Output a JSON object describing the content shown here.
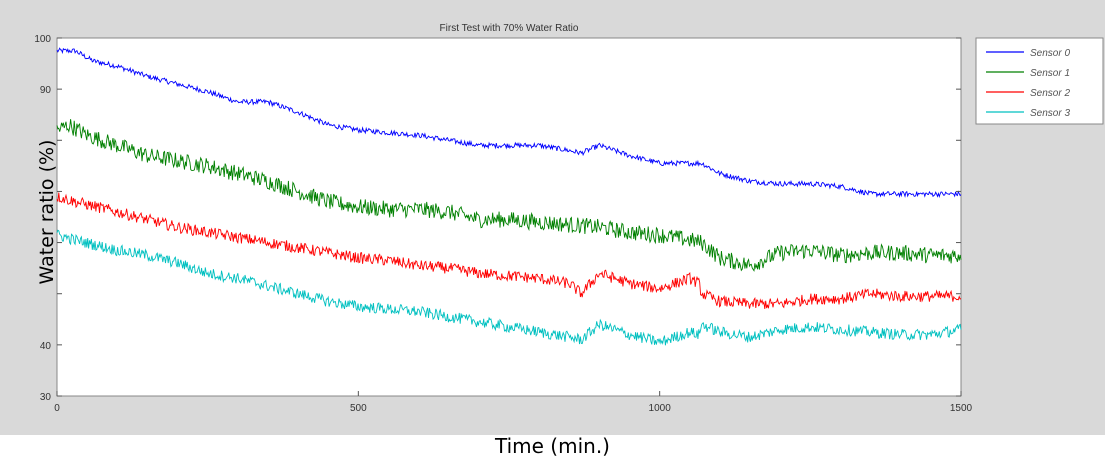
{
  "chart_data": {
    "type": "line",
    "title": "First Test with 70% Water Ratio",
    "xlabel": "Time (min.)",
    "ylabel": "Water ratio (%)",
    "xlim": [
      0,
      1500
    ],
    "ylim": [
      30,
      100
    ],
    "xticks": [
      0,
      500,
      1000,
      1500
    ],
    "yticks": [
      30,
      40,
      50,
      60,
      70,
      80,
      90,
      100
    ],
    "ytick_labels": [
      "30",
      "40",
      "",
      "",
      "",
      "",
      "90",
      "100"
    ],
    "grid": false,
    "legend_position": "right, top",
    "series": [
      {
        "name": "Sensor 0",
        "color": "#0000ff",
        "noise": 0.5,
        "x": [
          0,
          30,
          60,
          100,
          150,
          200,
          250,
          300,
          350,
          400,
          450,
          500,
          550,
          600,
          650,
          700,
          750,
          800,
          850,
          870,
          900,
          950,
          1000,
          1050,
          1070,
          1100,
          1150,
          1200,
          1250,
          1300,
          1350,
          1400,
          1450,
          1500
        ],
        "y": [
          97.5,
          97.5,
          95.5,
          94.5,
          92.5,
          91,
          89.5,
          87.5,
          87.5,
          85.5,
          83,
          82,
          81.5,
          81,
          80,
          79,
          79,
          79,
          78,
          77.5,
          79,
          77,
          75.5,
          75.5,
          75.5,
          73.5,
          72,
          71.5,
          71.5,
          71,
          69.5,
          69.5,
          69.5,
          69.5
        ]
      },
      {
        "name": "Sensor 1",
        "color": "#008000",
        "noise": 1.6,
        "x": [
          0,
          20,
          50,
          100,
          150,
          200,
          250,
          300,
          350,
          400,
          450,
          500,
          550,
          600,
          650,
          700,
          750,
          800,
          850,
          900,
          950,
          1000,
          1050,
          1070,
          1100,
          1150,
          1200,
          1250,
          1300,
          1350,
          1400,
          1450,
          1500
        ],
        "y": [
          82,
          83,
          81,
          79,
          77,
          76,
          75,
          73.5,
          72,
          70,
          68,
          67,
          66.5,
          66.5,
          66,
          64.5,
          64.5,
          64,
          63.5,
          63,
          62,
          61.5,
          60.5,
          60,
          57,
          55.5,
          58,
          58.5,
          57.5,
          58,
          58,
          57.5,
          57.5
        ]
      },
      {
        "name": "Sensor 2",
        "color": "#ff0000",
        "noise": 1.1,
        "x": [
          0,
          30,
          100,
          150,
          200,
          250,
          300,
          350,
          400,
          450,
          500,
          550,
          600,
          650,
          700,
          750,
          800,
          850,
          870,
          900,
          950,
          1000,
          1050,
          1065,
          1070,
          1100,
          1150,
          1200,
          1250,
          1300,
          1350,
          1400,
          1450,
          1500
        ],
        "y": [
          69,
          68,
          66,
          64.5,
          63,
          62,
          61,
          60,
          59,
          58,
          57,
          56.5,
          55.5,
          55,
          54,
          53.5,
          53,
          52,
          50,
          54,
          52,
          51,
          53,
          52,
          50,
          48.5,
          48,
          48,
          49,
          49,
          50,
          49.5,
          49.5,
          49.5
        ]
      },
      {
        "name": "Sensor 3",
        "color": "#00c0c0",
        "noise": 1.1,
        "x": [
          0,
          30,
          100,
          150,
          200,
          250,
          300,
          350,
          400,
          450,
          500,
          550,
          600,
          650,
          700,
          750,
          800,
          850,
          870,
          900,
          950,
          1000,
          1050,
          1065,
          1070,
          1100,
          1150,
          1200,
          1250,
          1300,
          1350,
          1400,
          1450,
          1500
        ],
        "y": [
          61.5,
          60.5,
          58.5,
          57.5,
          56,
          54,
          53,
          51.5,
          50,
          48.5,
          47.5,
          47,
          46.5,
          45.5,
          44.5,
          43.5,
          42.5,
          41.5,
          41,
          44,
          42,
          40.5,
          42.5,
          42,
          44,
          42.5,
          41.5,
          43,
          43.5,
          43,
          42.5,
          42,
          42,
          43
        ]
      }
    ]
  }
}
